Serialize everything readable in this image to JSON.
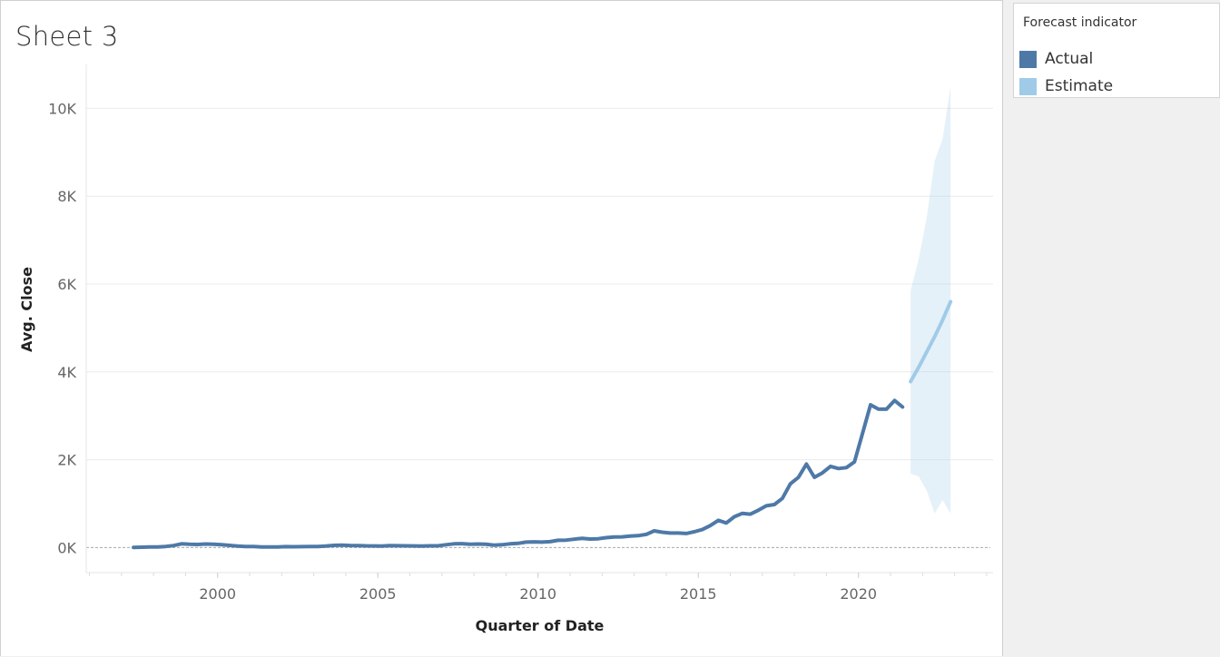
{
  "sheet": {
    "title": "Sheet 3"
  },
  "legend": {
    "title": "Forecast indicator",
    "items": [
      {
        "label": "Actual",
        "color": "#4e79a7"
      },
      {
        "label": "Estimate",
        "color": "#a0cbe8"
      }
    ]
  },
  "chart_data": {
    "type": "line",
    "xlabel": "Quarter of Date",
    "ylabel": "Avg. Close",
    "x_ticks": [
      2000,
      2005,
      2010,
      2015,
      2020
    ],
    "y_ticks": [
      0,
      2000,
      4000,
      6000,
      8000,
      10000
    ],
    "y_tick_labels": [
      "0K",
      "2K",
      "4K",
      "6K",
      "8K",
      "10K"
    ],
    "xlim": [
      1995.9,
      2024.2
    ],
    "ylim": [
      -570,
      11000
    ],
    "grid": true,
    "legend_position": "right",
    "series": [
      {
        "name": "Actual",
        "color": "#4e79a7",
        "x": [
          1997.375,
          1997.625,
          1997.875,
          1998.125,
          1998.375,
          1998.625,
          1998.875,
          1999.125,
          1999.375,
          1999.625,
          1999.875,
          2000.125,
          2000.375,
          2000.625,
          2000.875,
          2001.125,
          2001.375,
          2001.625,
          2001.875,
          2002.125,
          2002.375,
          2002.625,
          2002.875,
          2003.125,
          2003.375,
          2003.625,
          2003.875,
          2004.125,
          2004.375,
          2004.625,
          2004.875,
          2005.125,
          2005.375,
          2005.625,
          2005.875,
          2006.125,
          2006.375,
          2006.625,
          2006.875,
          2007.125,
          2007.375,
          2007.625,
          2007.875,
          2008.125,
          2008.375,
          2008.625,
          2008.875,
          2009.125,
          2009.375,
          2009.625,
          2009.875,
          2010.125,
          2010.375,
          2010.625,
          2010.875,
          2011.125,
          2011.375,
          2011.625,
          2011.875,
          2012.125,
          2012.375,
          2012.625,
          2012.875,
          2013.125,
          2013.375,
          2013.625,
          2013.875,
          2014.125,
          2014.375,
          2014.625,
          2014.875,
          2015.125,
          2015.375,
          2015.625,
          2015.875,
          2016.125,
          2016.375,
          2016.625,
          2016.875,
          2017.125,
          2017.375,
          2017.625,
          2017.875,
          2018.125,
          2018.375,
          2018.625,
          2018.875,
          2019.125,
          2019.375,
          2019.625,
          2019.875,
          2020.125,
          2020.375,
          2020.625,
          2020.875,
          2021.125,
          2021.375
        ],
        "values": [
          5,
          8,
          12,
          15,
          25,
          45,
          85,
          75,
          70,
          80,
          75,
          65,
          50,
          35,
          25,
          22,
          15,
          12,
          15,
          20,
          18,
          20,
          22,
          25,
          35,
          50,
          55,
          48,
          45,
          40,
          38,
          35,
          45,
          42,
          40,
          38,
          35,
          40,
          40,
          65,
          85,
          90,
          75,
          80,
          75,
          55,
          65,
          85,
          95,
          125,
          130,
          125,
          135,
          165,
          170,
          190,
          210,
          195,
          200,
          225,
          240,
          245,
          260,
          270,
          300,
          380,
          350,
          330,
          330,
          320,
          360,
          410,
          500,
          620,
          560,
          700,
          780,
          760,
          850,
          950,
          980,
          1120,
          1450,
          1600,
          1900,
          1600,
          1700,
          1850,
          1800,
          1820,
          1950,
          2600,
          3250,
          3150,
          3150,
          3350,
          3200
        ]
      },
      {
        "name": "Estimate",
        "color": "#a0cbe8",
        "x": [
          2021.625,
          2021.875,
          2022.125,
          2022.375,
          2022.625,
          2022.875
        ],
        "values": [
          3780,
          4100,
          4450,
          4800,
          5180,
          5600
        ],
        "band_upper": [
          5850,
          6550,
          7500,
          8800,
          9300,
          10500
        ],
        "band_lower": [
          1680,
          1620,
          1300,
          780,
          1080,
          780
        ]
      }
    ]
  }
}
